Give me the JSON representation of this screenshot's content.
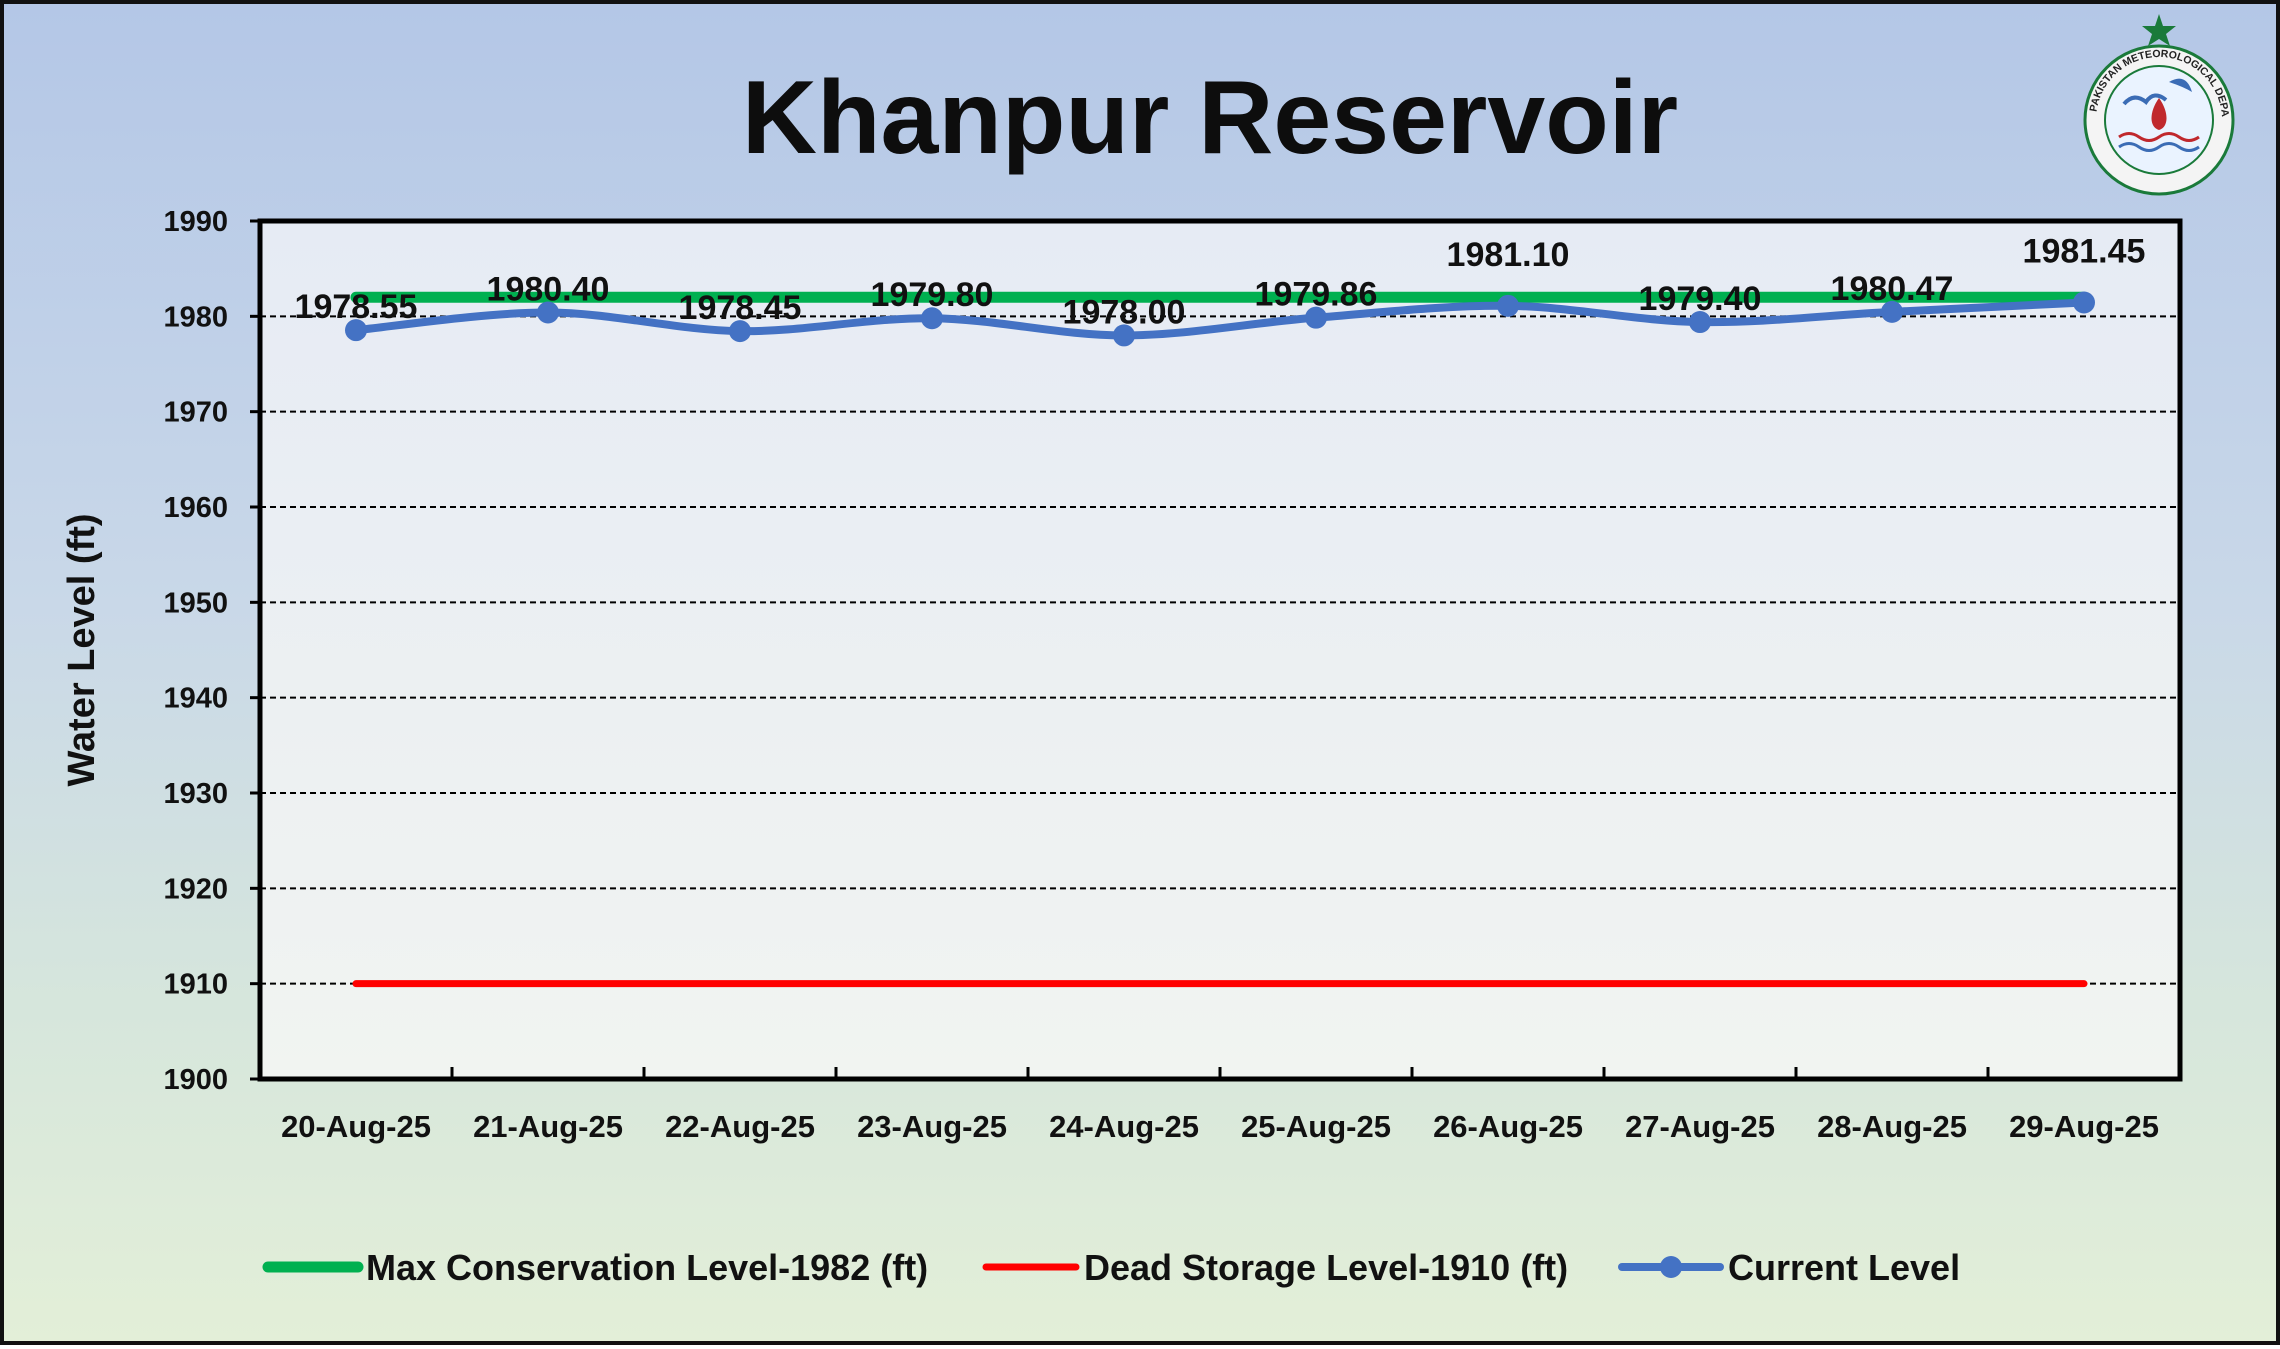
{
  "chart_data": {
    "type": "line",
    "title": "Khanpur Reservoir",
    "ylabel": "Water Level (ft)",
    "xlabel": "",
    "ylim": [
      1900,
      1990
    ],
    "yticks": [
      1900,
      1910,
      1920,
      1930,
      1940,
      1950,
      1960,
      1970,
      1980,
      1990
    ],
    "grid": true,
    "legend_position": "bottom",
    "categories": [
      "20-Aug-25",
      "21-Aug-25",
      "22-Aug-25",
      "23-Aug-25",
      "24-Aug-25",
      "25-Aug-25",
      "26-Aug-25",
      "27-Aug-25",
      "28-Aug-25",
      "29-Aug-25"
    ],
    "series": [
      {
        "name": "Max Conservation Level-1982 (ft)",
        "color": "#00b050",
        "values": [
          1982,
          1982,
          1982,
          1982,
          1982,
          1982,
          1982,
          1982,
          1982,
          1982
        ]
      },
      {
        "name": "Dead Storage Level-1910 (ft)",
        "color": "#ff0000",
        "values": [
          1910,
          1910,
          1910,
          1910,
          1910,
          1910,
          1910,
          1910,
          1910,
          1910
        ]
      },
      {
        "name": "Current Level",
        "color": "#4472c4",
        "values": [
          1978.55,
          1980.4,
          1978.45,
          1979.8,
          1978.0,
          1979.86,
          1981.1,
          1979.4,
          1980.47,
          1981.45
        ],
        "labels": [
          "1978.55",
          "1980.40",
          "1978.45",
          "1979.80",
          "1978.00",
          "1979.86",
          "1981.10",
          "1979.40",
          "1980.47",
          "1981.45"
        ]
      }
    ]
  },
  "logo": {
    "text": "PAKISTAN METEOROLOGICAL DEPARTMENT",
    "colors": {
      "star": "#1a7a3a",
      "ring": "#1a7a3a",
      "drop": "#c0282d"
    }
  }
}
